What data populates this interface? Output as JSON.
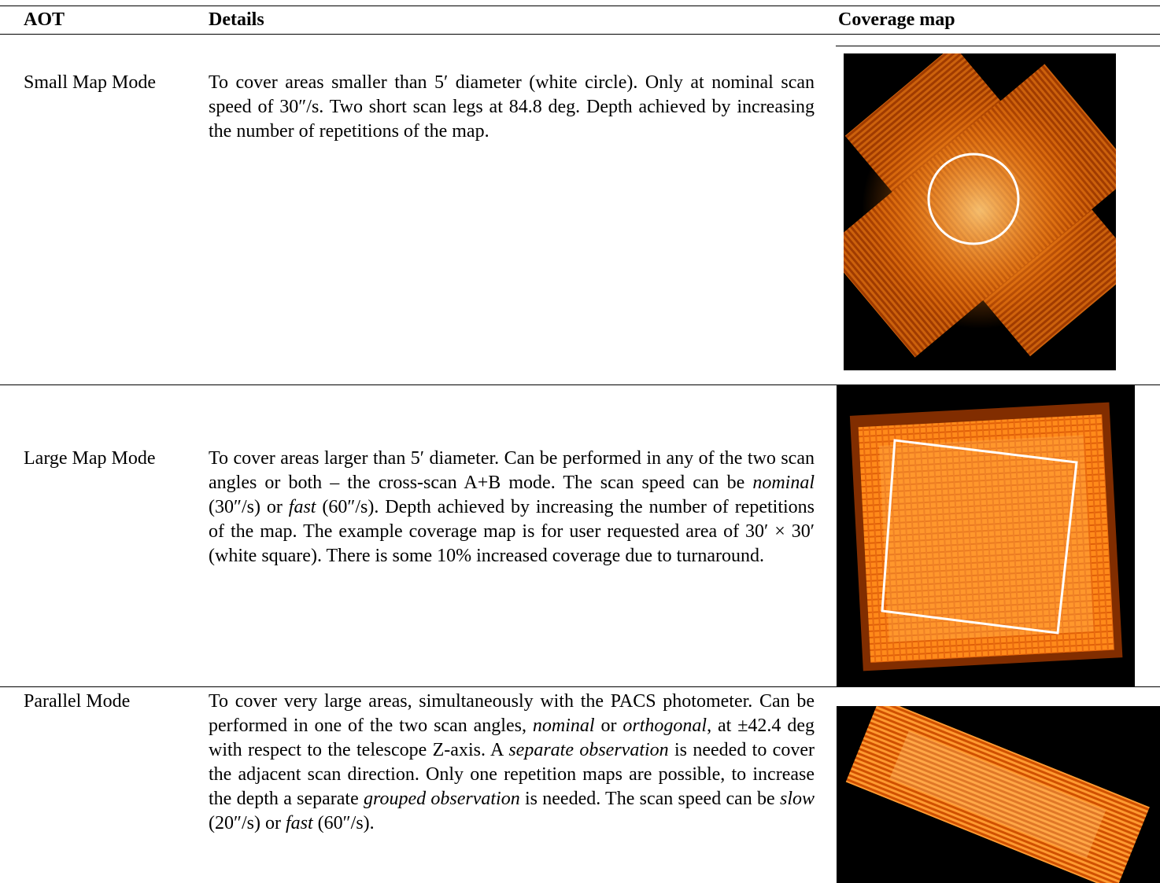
{
  "header": {
    "aot": "AOT",
    "details": "Details",
    "coverage_map": "Coverage map"
  },
  "rows": [
    {
      "aot": "Small Map Mode",
      "details": [
        {
          "text": "To cover areas smaller than 5′ diameter (white circle). Only at nominal scan speed of 30″/s. Two short scan legs at 84.8 deg. Depth achieved by increasing the number of repetitions of the map."
        }
      ]
    },
    {
      "aot": "Large Map Mode",
      "details": [
        {
          "text": "To cover areas larger than 5′ diameter. Can be performed in any of the two scan angles or both – the cross-scan A+B mode. The scan speed can be "
        },
        {
          "text": "nominal",
          "style": "italic"
        },
        {
          "text": " (30″/s) or "
        },
        {
          "text": "fast",
          "style": "italic"
        },
        {
          "text": " (60″/s). Depth achieved by increasing the number of repetitions of the map. The example coverage map is for user requested area of 30′ × 30′ (white square). There is some 10% increased coverage due to turnaround."
        }
      ]
    },
    {
      "aot": "Parallel Mode",
      "details": [
        {
          "text": "To cover very large areas, simultaneously with the PACS photometer. Can be performed in one of the two scan angles, "
        },
        {
          "text": "nominal",
          "style": "italic"
        },
        {
          "text": " or "
        },
        {
          "text": "orthogonal",
          "style": "italic"
        },
        {
          "text": ", at ±42.4 deg with respect to the telescope Z-axis. A "
        },
        {
          "text": "separate observation",
          "style": "italic"
        },
        {
          "text": " is needed to cover the adjacent scan direction. Only one repetition maps are possible, to increase the depth a separate "
        },
        {
          "text": "grouped observation",
          "style": "italic"
        },
        {
          "text": " is needed. The scan speed can be "
        },
        {
          "text": "slow",
          "style": "italic"
        },
        {
          "text": " (20″/s) or "
        },
        {
          "text": "fast",
          "style": "italic"
        },
        {
          "text": " (60″/s)."
        }
      ]
    }
  ]
}
